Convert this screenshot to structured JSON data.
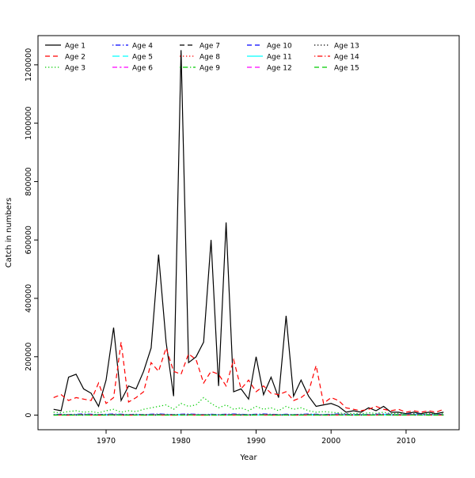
{
  "figure": {
    "background": "#ffffff"
  },
  "chart_data": {
    "type": "line",
    "title": "",
    "xlabel": "Year",
    "ylabel": "Catch in numbers",
    "xlim": [
      1963,
      2015
    ],
    "ylim": [
      0,
      1250000
    ],
    "xticks": [
      1970,
      1980,
      1990,
      2000,
      2010
    ],
    "yticks": [
      0,
      200000,
      400000,
      600000,
      800000,
      1000000,
      1200000
    ],
    "grid": false,
    "legend": {
      "position": "top-left",
      "columns": 5,
      "rows_per_column": 3
    },
    "x": [
      1963,
      1964,
      1965,
      1966,
      1967,
      1968,
      1969,
      1970,
      1971,
      1972,
      1973,
      1974,
      1975,
      1976,
      1977,
      1978,
      1979,
      1980,
      1981,
      1982,
      1983,
      1984,
      1985,
      1986,
      1987,
      1988,
      1989,
      1990,
      1991,
      1992,
      1993,
      1994,
      1995,
      1996,
      1997,
      1998,
      1999,
      2000,
      2001,
      2002,
      2003,
      2004,
      2005,
      2006,
      2007,
      2008,
      2009,
      2010,
      2011,
      2012,
      2013,
      2014,
      2015
    ],
    "series": [
      {
        "name": "Age 1",
        "color": "#000000",
        "linetype": "solid",
        "values": [
          20000,
          15000,
          130000,
          140000,
          90000,
          75000,
          30000,
          120000,
          300000,
          50000,
          100000,
          90000,
          150000,
          230000,
          550000,
          250000,
          65000,
          1250000,
          180000,
          200000,
          250000,
          600000,
          100000,
          660000,
          80000,
          90000,
          55000,
          200000,
          70000,
          130000,
          60000,
          340000,
          65000,
          120000,
          65000,
          30000,
          35000,
          40000,
          30000,
          10000,
          15000,
          10000,
          25000,
          15000,
          30000,
          10000,
          10000,
          5000,
          10000,
          5000,
          10000,
          5000,
          10000
        ]
      },
      {
        "name": "Age 2",
        "color": "#ff0000",
        "linetype": "dashed",
        "values": [
          60000,
          70000,
          50000,
          60000,
          55000,
          50000,
          110000,
          40000,
          60000,
          250000,
          45000,
          60000,
          80000,
          180000,
          150000,
          230000,
          150000,
          140000,
          210000,
          190000,
          110000,
          150000,
          140000,
          100000,
          190000,
          90000,
          120000,
          80000,
          100000,
          75000,
          70000,
          80000,
          50000,
          60000,
          80000,
          170000,
          40000,
          60000,
          50000,
          25000,
          20000,
          15000,
          20000,
          30000,
          20000,
          15000,
          20000,
          10000,
          15000,
          10000,
          15000,
          10000,
          20000
        ]
      },
      {
        "name": "Age 3",
        "color": "#00cc00",
        "linetype": "dotted",
        "values": [
          10000,
          8000,
          12000,
          15000,
          10000,
          12000,
          8000,
          15000,
          20000,
          10000,
          15000,
          12000,
          20000,
          25000,
          30000,
          35000,
          20000,
          40000,
          30000,
          35000,
          60000,
          40000,
          25000,
          35000,
          20000,
          25000,
          15000,
          30000,
          20000,
          25000,
          15000,
          30000,
          20000,
          25000,
          15000,
          10000,
          12000,
          10000,
          8000,
          5000,
          6000,
          5000,
          8000,
          6000,
          10000,
          5000,
          6000,
          4000,
          5000,
          4000,
          5000,
          4000,
          5000
        ]
      },
      {
        "name": "Age 4",
        "color": "#0000ff",
        "linetype": "dashdot",
        "values": [
          2000,
          3000,
          2000,
          3000,
          4000,
          3000,
          2000,
          3000,
          4000,
          3000,
          2000,
          3000,
          2000,
          3000,
          4000,
          3000,
          2000,
          3000,
          4000,
          3000,
          2000,
          3000,
          2000,
          3000,
          4000,
          3000,
          2000,
          3000,
          4000,
          3000,
          2000,
          3000,
          2000,
          3000,
          4000,
          3000,
          2000,
          3000,
          4000,
          3000,
          2000,
          3000,
          2000,
          3000,
          4000,
          3000,
          2000,
          3000,
          4000,
          3000,
          2000,
          3000,
          2000
        ]
      },
      {
        "name": "Age 5",
        "color": "#00ffff",
        "linetype": "longdash",
        "values": [
          1500,
          2000,
          1500,
          2000,
          2500,
          2000,
          1500,
          2000,
          2500,
          2000,
          1500,
          2000,
          1500,
          2000,
          2500,
          2000,
          1500,
          2000,
          2500,
          2000,
          1500,
          2000,
          1500,
          2000,
          2500,
          2000,
          1500,
          2000,
          2500,
          2000,
          1500,
          2000,
          1500,
          2000,
          2500,
          2000,
          1500,
          2000,
          2500,
          2000,
          1500,
          2000,
          1500,
          2000,
          2500,
          2000,
          1500,
          2000,
          2500,
          2000,
          1500,
          2000,
          1500
        ]
      },
      {
        "name": "Age 6",
        "color": "#ff00ff",
        "linetype": "twodash",
        "values": [
          1000,
          1500,
          1000,
          1500,
          2000,
          1500,
          1000,
          1500,
          2000,
          1500,
          1000,
          1500,
          1000,
          1500,
          2000,
          1500,
          1000,
          1500,
          2000,
          1500,
          1000,
          1500,
          1000,
          1500,
          2000,
          1500,
          1000,
          1500,
          2000,
          1500,
          1000,
          1500,
          1000,
          1500,
          2000,
          1500,
          1000,
          1500,
          2000,
          1500,
          1000,
          1500,
          1000,
          1500,
          2000,
          1500,
          1000,
          1500,
          2000,
          1500,
          1000,
          1500,
          1000
        ]
      },
      {
        "name": "Age 7",
        "color": "#000000",
        "linetype": "dashed",
        "values": [
          1000,
          1200,
          1000,
          1200,
          1500,
          1200,
          1000,
          1200,
          1500,
          1200,
          1000,
          1200,
          1000,
          1200,
          1500,
          1200,
          1000,
          1200,
          1500,
          1200,
          1000,
          1200,
          1000,
          1200,
          1500,
          1200,
          1000,
          1200,
          1500,
          1200,
          1000,
          1200,
          1000,
          1200,
          1500,
          1200,
          1000,
          1200,
          1500,
          1200,
          1000,
          1200,
          1000,
          1200,
          1500,
          1200,
          1000,
          1200,
          1500,
          1200,
          1000,
          1200,
          1000
        ]
      },
      {
        "name": "Age 8",
        "color": "#ff0000",
        "linetype": "dotted",
        "values": [
          800,
          1000,
          800,
          1000,
          1200,
          1000,
          800,
          1000,
          1200,
          1000,
          800,
          1000,
          800,
          1000,
          1200,
          1000,
          800,
          1000,
          1200,
          1000,
          800,
          1000,
          800,
          1000,
          1200,
          1000,
          800,
          1000,
          1200,
          1000,
          800,
          1000,
          800,
          1000,
          1200,
          1000,
          800,
          1000,
          1200,
          1000,
          800,
          1000,
          800,
          1000,
          1200,
          1000,
          800,
          1000,
          1200,
          1000,
          800,
          1000,
          800
        ]
      },
      {
        "name": "Age 9",
        "color": "#00cc00",
        "linetype": "dashdot",
        "values": [
          800,
          900,
          800,
          900,
          1000,
          900,
          800,
          900,
          1000,
          900,
          800,
          900,
          800,
          900,
          1000,
          900,
          800,
          900,
          1000,
          900,
          800,
          900,
          800,
          900,
          1000,
          900,
          800,
          900,
          1000,
          900,
          800,
          900,
          800,
          900,
          1000,
          900,
          800,
          900,
          1000,
          900,
          800,
          900,
          800,
          900,
          1000,
          900,
          800,
          900,
          1000,
          900,
          800,
          900,
          800
        ]
      },
      {
        "name": "Age 10",
        "color": "#0000ff",
        "linetype": "dashed",
        "values": [
          500,
          600,
          500,
          600,
          700,
          600,
          500,
          600,
          700,
          600,
          500,
          600,
          500,
          600,
          700,
          600,
          500,
          600,
          700,
          600,
          500,
          600,
          500,
          600,
          700,
          600,
          500,
          600,
          700,
          600,
          500,
          600,
          500,
          600,
          700,
          600,
          500,
          600,
          700,
          600,
          500,
          600,
          500,
          600,
          700,
          600,
          500,
          600,
          700,
          600,
          500,
          600,
          500
        ]
      },
      {
        "name": "Age 11",
        "color": "#00ffff",
        "linetype": "solid",
        "values": [
          400,
          500,
          400,
          500,
          600,
          500,
          400,
          500,
          600,
          500,
          400,
          500,
          400,
          500,
          600,
          500,
          400,
          500,
          600,
          500,
          400,
          500,
          400,
          500,
          600,
          500,
          400,
          500,
          600,
          500,
          400,
          500,
          400,
          500,
          600,
          500,
          400,
          500,
          600,
          500,
          400,
          500,
          400,
          500,
          600,
          500,
          400,
          500,
          600,
          500,
          400,
          500,
          400
        ]
      },
      {
        "name": "Age 12",
        "color": "#ff00ff",
        "linetype": "dashed",
        "values": [
          300,
          400,
          300,
          400,
          500,
          400,
          300,
          400,
          500,
          400,
          300,
          400,
          300,
          400,
          500,
          400,
          300,
          400,
          500,
          400,
          300,
          400,
          300,
          400,
          500,
          400,
          300,
          400,
          500,
          400,
          300,
          400,
          300,
          400,
          500,
          400,
          300,
          400,
          500,
          400,
          300,
          400,
          300,
          400,
          500,
          400,
          300,
          400,
          500,
          400,
          300,
          400,
          300
        ]
      },
      {
        "name": "Age 13",
        "color": "#000000",
        "linetype": "dotted",
        "values": [
          300,
          350,
          300,
          350,
          400,
          350,
          300,
          350,
          400,
          350,
          300,
          350,
          300,
          350,
          400,
          350,
          300,
          350,
          400,
          350,
          300,
          350,
          300,
          350,
          400,
          350,
          300,
          350,
          400,
          350,
          300,
          350,
          300,
          350,
          400,
          350,
          300,
          350,
          400,
          350,
          300,
          350,
          300,
          350,
          400,
          350,
          300,
          350,
          400,
          350,
          300,
          350,
          300
        ]
      },
      {
        "name": "Age 14",
        "color": "#ff0000",
        "linetype": "dashdot",
        "values": [
          200,
          300,
          200,
          300,
          400,
          300,
          200,
          300,
          400,
          300,
          200,
          300,
          200,
          300,
          400,
          300,
          200,
          300,
          400,
          300,
          200,
          300,
          200,
          300,
          400,
          300,
          200,
          300,
          400,
          300,
          200,
          300,
          200,
          300,
          400,
          300,
          200,
          300,
          400,
          300,
          200,
          300,
          200,
          300,
          400,
          300,
          200,
          300,
          400,
          300,
          200,
          300,
          200
        ]
      },
      {
        "name": "Age 15",
        "color": "#00cc00",
        "linetype": "dashed",
        "values": [
          200,
          250,
          200,
          250,
          300,
          250,
          200,
          250,
          300,
          250,
          200,
          250,
          200,
          250,
          300,
          250,
          200,
          250,
          300,
          250,
          200,
          250,
          200,
          250,
          300,
          250,
          200,
          250,
          300,
          250,
          200,
          250,
          200,
          250,
          300,
          250,
          200,
          250,
          300,
          250,
          200,
          250,
          200,
          250,
          300,
          250,
          200,
          250,
          300,
          250,
          200,
          250,
          200
        ]
      }
    ]
  }
}
